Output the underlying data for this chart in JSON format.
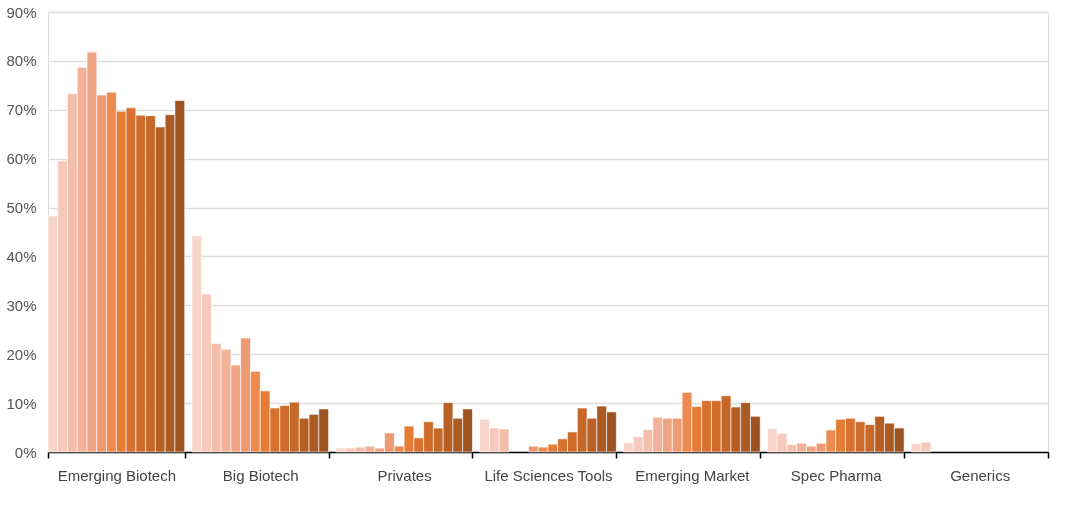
{
  "chart_data": {
    "type": "bar",
    "categories": [
      "Emerging Biotech",
      "Big Biotech",
      "Privates",
      "Life Sciences Tools",
      "Emerging Market",
      "Spec Pharma",
      "Generics"
    ],
    "series": [
      {
        "color": "#f8d5c9",
        "values": [
          48.3,
          44.2,
          0.8,
          6.7,
          1.9,
          4.8,
          1.7
        ]
      },
      {
        "color": "#f6c9ba",
        "values": [
          59.5,
          32.3,
          0.8,
          4.9,
          3.1,
          3.8,
          2.0
        ]
      },
      {
        "color": "#f4bfaa",
        "values": [
          73.3,
          22.2,
          1.0,
          4.7,
          4.6,
          1.5,
          null
        ]
      },
      {
        "color": "#f2b198",
        "values": [
          78.7,
          21.0,
          1.2,
          null,
          7.1,
          1.8,
          null
        ]
      },
      {
        "color": "#efa584",
        "values": [
          81.8,
          17.8,
          0.8,
          null,
          6.9,
          1.2,
          null
        ]
      },
      {
        "color": "#ee9a72",
        "values": [
          73.0,
          23.3,
          3.9,
          1.2,
          6.9,
          1.8,
          null
        ]
      },
      {
        "color": "#ed8a4f",
        "values": [
          73.6,
          16.5,
          1.2,
          1.0,
          12.2,
          4.5,
          null
        ]
      },
      {
        "color": "#e67c33",
        "values": [
          69.7,
          12.5,
          5.3,
          1.6,
          9.3,
          6.7,
          null
        ]
      },
      {
        "color": "#d8702e",
        "values": [
          70.4,
          9.0,
          2.9,
          2.7,
          10.5,
          6.9,
          null
        ]
      },
      {
        "color": "#cf6c2c",
        "values": [
          68.9,
          9.5,
          6.2,
          4.1,
          10.5,
          6.2,
          null
        ]
      },
      {
        "color": "#c6682a",
        "values": [
          68.8,
          10.2,
          4.9,
          9.0,
          11.5,
          5.6,
          null
        ]
      },
      {
        "color": "#b85f25",
        "values": [
          66.5,
          6.9,
          10.1,
          6.9,
          9.2,
          7.3,
          null
        ]
      },
      {
        "color": "#aa5a23",
        "values": [
          69.0,
          7.7,
          6.9,
          9.4,
          10.1,
          5.9,
          null
        ]
      },
      {
        "color": "#9c5221",
        "values": [
          71.9,
          8.8,
          8.8,
          8.2,
          7.3,
          4.9,
          null
        ]
      }
    ],
    "ylim": [
      0,
      90
    ],
    "yticks": [
      {
        "value": 0,
        "label": "0%"
      },
      {
        "value": 10,
        "label": "10%"
      },
      {
        "value": 20,
        "label": "20%"
      },
      {
        "value": 30,
        "label": "30%"
      },
      {
        "value": 40,
        "label": "40%"
      },
      {
        "value": 50,
        "label": "50%"
      },
      {
        "value": 60,
        "label": "60%"
      },
      {
        "value": 70,
        "label": "70%"
      },
      {
        "value": 80,
        "label": "80%"
      },
      {
        "value": 90,
        "label": "90%"
      }
    ],
    "grid": "y",
    "legend": false
  }
}
